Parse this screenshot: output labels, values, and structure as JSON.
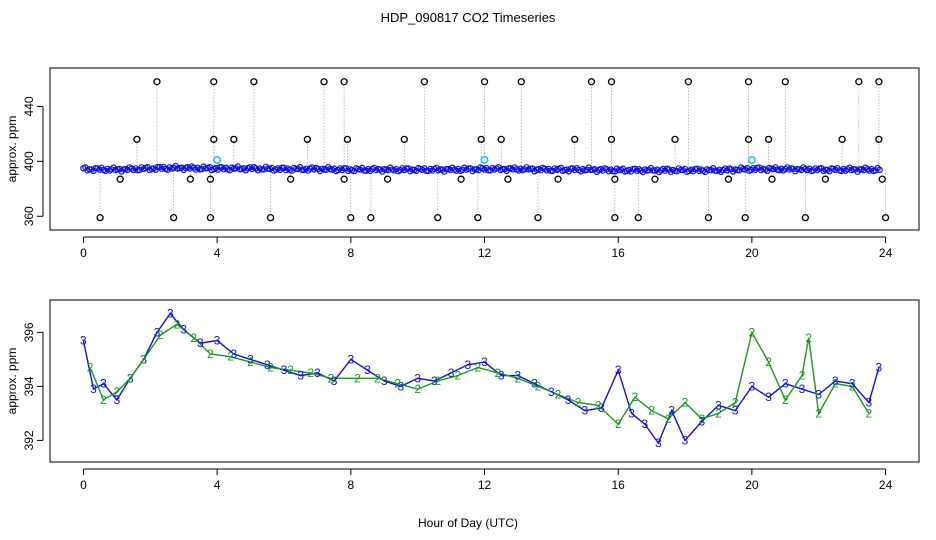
{
  "figure": {
    "title": "HDP_090817  CO2 Timeseries",
    "xlabel": "Hour of Day (UTC)"
  },
  "chart_data": [
    {
      "type": "scatter",
      "ylabel": "approx. ppm",
      "xlim": [
        -1,
        25
      ],
      "ylim": [
        350,
        468
      ],
      "xticks": [
        0,
        4,
        8,
        12,
        16,
        20,
        24
      ],
      "yticks": [
        360,
        400,
        440
      ],
      "colors": {
        "main": "#1010dd",
        "outlier": "#000000",
        "cyan": "#22c8d8",
        "line": "#aaaaaa"
      },
      "baseline": {
        "x": [
          0.0,
          1.0,
          2.0,
          2.6,
          3.0,
          4.0,
          5.0,
          6.0,
          7.0,
          8.0,
          9.0,
          10.0,
          11.0,
          12.0,
          13.0,
          14.0,
          15.0,
          16.0,
          17.0,
          18.0,
          19.0,
          20.0,
          21.0,
          22.0,
          23.0,
          23.8
        ],
        "y": [
          395,
          394,
          396,
          397,
          397,
          396,
          396,
          395,
          395,
          394,
          394,
          394,
          394,
          395,
          395,
          394,
          394,
          393,
          393,
          393,
          393,
          395,
          395,
          394,
          394,
          394
        ]
      },
      "outliers_high": [
        2.2,
        3.9,
        5.1,
        7.2,
        7.8,
        10.2,
        12.0,
        13.1,
        15.2,
        15.8,
        18.1,
        19.9,
        21.0,
        23.2,
        23.8
      ],
      "outliers_low": [
        0.5,
        2.7,
        3.8,
        5.6,
        8.0,
        8.6,
        10.6,
        11.8,
        13.6,
        15.9,
        16.6,
        18.7,
        19.8,
        21.6,
        24.0
      ],
      "outliers_mid_high": [
        1.6,
        3.9,
        4.5,
        6.7,
        7.9,
        9.6,
        11.9,
        12.5,
        14.7,
        15.8,
        17.7,
        19.9,
        20.5,
        22.7,
        23.8
      ],
      "outliers_mid_low": [
        1.1,
        3.2,
        3.8,
        6.2,
        7.8,
        9.1,
        11.3,
        12.7,
        14.2,
        15.9,
        17.1,
        19.3,
        20.6,
        22.2,
        23.9
      ],
      "cyan_points": [
        {
          "x": 4.0,
          "y": 401
        },
        {
          "x": 12.0,
          "y": 401
        },
        {
          "x": 20.0,
          "y": 401
        }
      ]
    },
    {
      "type": "line",
      "ylabel": "approx. ppm",
      "xlim": [
        -1,
        25
      ],
      "ylim": [
        391.2,
        397.2
      ],
      "xticks": [
        0,
        4,
        8,
        12,
        16,
        20,
        24
      ],
      "yticks": [
        392,
        394,
        396
      ],
      "series": [
        {
          "name": "3",
          "color": "#1010dd",
          "x": [
            0.0,
            0.3,
            0.6,
            1.0,
            1.4,
            1.8,
            2.2,
            2.6,
            3.0,
            3.5,
            4.0,
            4.5,
            5.0,
            5.5,
            6.0,
            6.5,
            7.0,
            7.5,
            8.0,
            8.5,
            9.0,
            9.5,
            10.0,
            10.5,
            11.0,
            11.5,
            12.0,
            12.5,
            13.0,
            13.5,
            14.0,
            14.5,
            15.0,
            15.5,
            16.0,
            16.4,
            16.8,
            17.2,
            17.6,
            18.0,
            18.5,
            19.0,
            19.5,
            20.0,
            20.5,
            21.0,
            21.5,
            22.0,
            22.5,
            23.0,
            23.5,
            23.8
          ],
          "y": [
            395.7,
            393.9,
            394.1,
            393.5,
            394.3,
            395.0,
            396.0,
            396.7,
            396.1,
            395.6,
            395.7,
            395.2,
            395.0,
            394.8,
            394.6,
            394.4,
            394.5,
            394.2,
            395.0,
            394.6,
            394.2,
            394.0,
            394.3,
            394.2,
            394.5,
            394.8,
            394.9,
            394.4,
            394.4,
            394.1,
            393.8,
            393.5,
            393.1,
            393.2,
            394.6,
            393.0,
            392.6,
            391.9,
            393.1,
            392.0,
            392.7,
            393.3,
            393.1,
            394.0,
            393.6,
            394.1,
            393.9,
            393.7,
            394.2,
            394.1,
            393.4,
            394.7
          ]
        },
        {
          "name": "2",
          "color": "#1a9a1a",
          "x": [
            0.2,
            0.6,
            1.0,
            1.4,
            1.8,
            2.3,
            2.8,
            3.3,
            3.8,
            4.4,
            5.0,
            5.6,
            6.2,
            6.8,
            7.4,
            8.2,
            8.8,
            9.4,
            10.0,
            10.6,
            11.2,
            11.8,
            12.4,
            13.0,
            13.6,
            14.2,
            14.8,
            15.4,
            16.0,
            16.5,
            17.0,
            17.5,
            18.0,
            18.5,
            19.0,
            19.5,
            20.0,
            20.5,
            21.0,
            21.5,
            21.7,
            22.0,
            22.5,
            23.0,
            23.5
          ],
          "y": [
            394.7,
            393.5,
            393.8,
            394.3,
            395.0,
            395.9,
            396.3,
            395.8,
            395.2,
            395.1,
            394.9,
            394.7,
            394.6,
            394.5,
            394.3,
            394.3,
            394.3,
            394.1,
            393.9,
            394.2,
            394.4,
            394.7,
            394.5,
            394.3,
            394.0,
            393.7,
            393.4,
            393.3,
            392.6,
            393.6,
            393.1,
            392.8,
            393.4,
            392.8,
            393.0,
            393.4,
            396.0,
            394.9,
            393.5,
            394.4,
            395.8,
            393.0,
            394.1,
            394.0,
            393.0
          ]
        }
      ]
    }
  ]
}
